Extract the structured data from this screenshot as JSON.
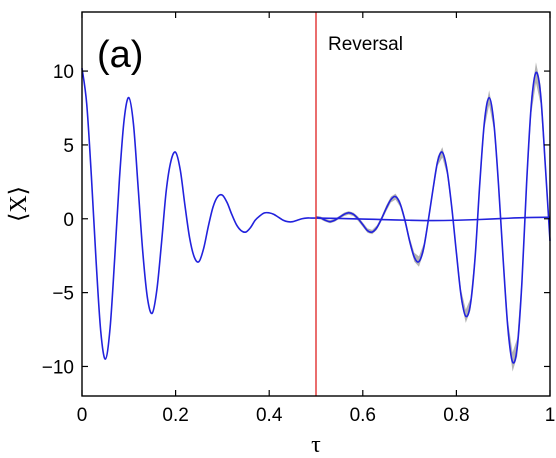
{
  "chart_data": {
    "type": "line",
    "panel_label": "(a)",
    "xlabel": "τ",
    "ylabel": "⟨X⟩",
    "xlim": [
      0,
      1
    ],
    "ylim": [
      -12,
      14
    ],
    "x_ticks": [
      0,
      0.2,
      0.4,
      0.6,
      0.8,
      1
    ],
    "x_tick_labels": [
      "0",
      "0.2",
      "0.4",
      "0.6",
      "0.8",
      "1"
    ],
    "y_ticks": [
      -10,
      -5,
      0,
      5,
      10
    ],
    "y_tick_labels": [
      "−10",
      "−5",
      "0",
      "5",
      "10"
    ],
    "annotation": {
      "text": "Reversal",
      "x": 0.5
    },
    "colors": {
      "series": "#2222dd",
      "band": "#999999",
      "reversal_line": "#e03030",
      "axes": "#000000"
    },
    "series": [
      {
        "id": "forward-oscillation",
        "band": false,
        "x": [
          0,
          0.01,
          0.02,
          0.03,
          0.04,
          0.05,
          0.06,
          0.07,
          0.08,
          0.09,
          0.1,
          0.11,
          0.12,
          0.13,
          0.14,
          0.15,
          0.16,
          0.17,
          0.18,
          0.19,
          0.2,
          0.21,
          0.22,
          0.23,
          0.24,
          0.25,
          0.26,
          0.27,
          0.28,
          0.29,
          0.3,
          0.31,
          0.32,
          0.33,
          0.34,
          0.35,
          0.36,
          0.37,
          0.38,
          0.39,
          0.4,
          0.41,
          0.42,
          0.43,
          0.44,
          0.45,
          0.46,
          0.47,
          0.48,
          0.49,
          0.5
        ],
        "y": [
          10.2,
          7.8,
          2.9,
          -2.8,
          -7.6,
          -9.5,
          -7.4,
          -2.6,
          2.7,
          6.7,
          8.2,
          6.4,
          2.1,
          -2.3,
          -5.4,
          -6.4,
          -4.8,
          -1.6,
          1.9,
          3.9,
          4.5,
          3.3,
          0.9,
          -1.3,
          -2.6,
          -2.9,
          -2.0,
          -0.5,
          0.8,
          1.5,
          1.6,
          1.1,
          0.3,
          -0.4,
          -0.8,
          -0.9,
          -0.6,
          -0.1,
          0.2,
          0.4,
          0.4,
          0.3,
          0.1,
          -0.1,
          -0.2,
          -0.2,
          -0.1,
          0.0,
          0.05,
          0.05,
          0.05
        ]
      },
      {
        "id": "reversed-oscillation",
        "band": true,
        "x": [
          0.5,
          0.51,
          0.52,
          0.53,
          0.54,
          0.55,
          0.56,
          0.57,
          0.58,
          0.59,
          0.6,
          0.61,
          0.62,
          0.63,
          0.64,
          0.65,
          0.66,
          0.67,
          0.68,
          0.69,
          0.7,
          0.71,
          0.72,
          0.73,
          0.74,
          0.75,
          0.76,
          0.77,
          0.78,
          0.79,
          0.8,
          0.81,
          0.82,
          0.83,
          0.84,
          0.85,
          0.86,
          0.87,
          0.88,
          0.89,
          0.9,
          0.91,
          0.92,
          0.93,
          0.94,
          0.95,
          0.96,
          0.97,
          0.98,
          0.99,
          1.0
        ],
        "y": [
          0.1,
          0.05,
          -0.1,
          -0.2,
          -0.1,
          0.1,
          0.3,
          0.4,
          0.3,
          0.0,
          -0.4,
          -0.8,
          -0.9,
          -0.6,
          0.0,
          0.7,
          1.3,
          1.5,
          1.0,
          -0.1,
          -1.5,
          -2.6,
          -2.9,
          -2.0,
          -0.1,
          2.0,
          3.9,
          4.5,
          3.3,
          0.8,
          -2.3,
          -5.2,
          -6.6,
          -5.8,
          -2.6,
          2.4,
          6.6,
          8.2,
          6.5,
          2.3,
          -2.8,
          -7.4,
          -9.7,
          -8.7,
          -4.3,
          2.4,
          7.7,
          9.9,
          8.4,
          3.6,
          -1.5
        ],
        "spread": [
          0.1,
          0.1,
          0.1,
          0.1,
          0.1,
          0.1,
          0.12,
          0.12,
          0.12,
          0.15,
          0.15,
          0.15,
          0.15,
          0.15,
          0.15,
          0.2,
          0.2,
          0.2,
          0.2,
          0.2,
          0.25,
          0.3,
          0.35,
          0.3,
          0.25,
          0.25,
          0.3,
          0.35,
          0.3,
          0.3,
          0.35,
          0.4,
          0.45,
          0.4,
          0.35,
          0.35,
          0.45,
          0.5,
          0.45,
          0.4,
          0.4,
          0.55,
          0.65,
          0.6,
          0.5,
          0.5,
          0.6,
          0.7,
          0.65,
          0.55,
          0.5
        ]
      },
      {
        "id": "forward-residual",
        "band": false,
        "x": [
          0.5,
          0.55,
          0.6,
          0.65,
          0.7,
          0.75,
          0.8,
          0.85,
          0.9,
          0.95,
          1.0
        ],
        "y": [
          0.05,
          0.02,
          -0.02,
          -0.06,
          -0.1,
          -0.12,
          -0.1,
          -0.05,
          0.02,
          0.08,
          0.1
        ]
      }
    ]
  }
}
